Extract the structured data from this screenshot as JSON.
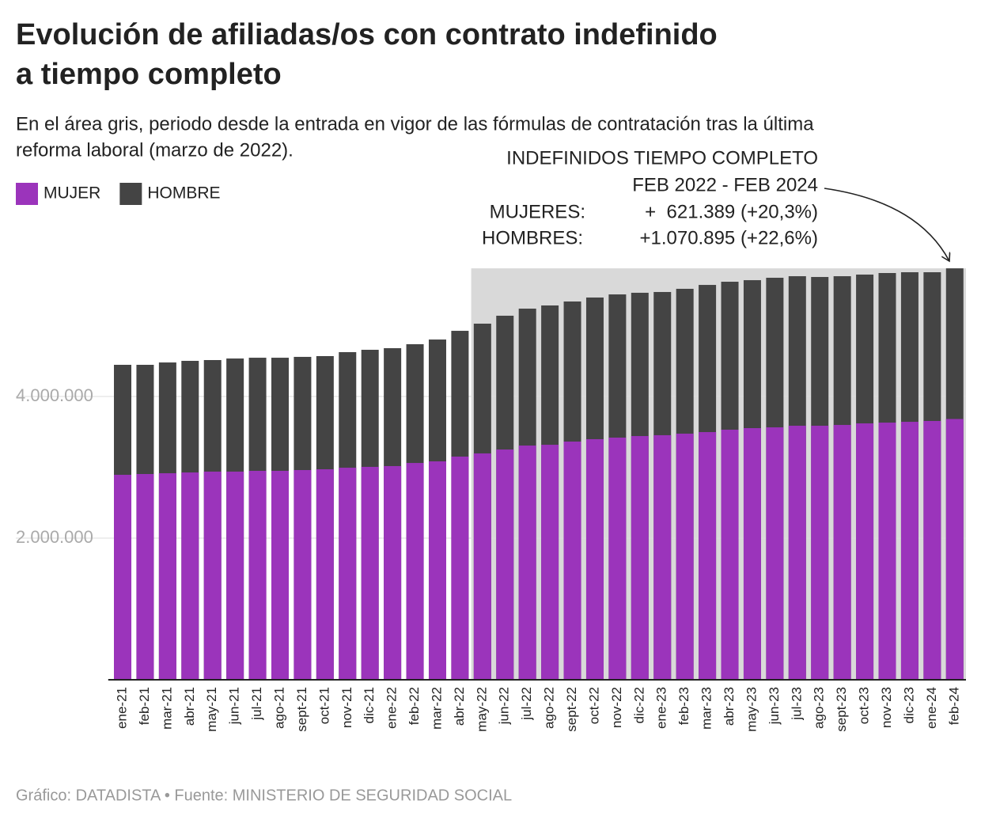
{
  "chart_data": {
    "type": "bar",
    "title": [
      "Evolución de afiliadas/os con contrato indefinido",
      "a tiempo completo"
    ],
    "subtitle": [
      "En el área gris, periodo desde la entrada en vigor de las fórmulas de contratación tras la última",
      "reforma laboral (marzo de 2022)."
    ],
    "source": "Gráfico: DATADISTA • Fuente: MINISTERIO DE SEGURIDAD SOCIAL",
    "annotation": {
      "title": "INDEFINIDOS TIEMPO COMPLETO",
      "period": "FEB 2022 - FEB 2024",
      "rows": [
        {
          "label": "MUJERES:",
          "text": "+  621.389 (+20,3%)"
        },
        {
          "label": "HOMBRES:",
          "text": "+1.070.895 (+22,6%)"
        }
      ]
    },
    "shaded_range": [
      "may-22",
      "feb-24"
    ],
    "categories": [
      "ene-21",
      "feb-21",
      "mar-21",
      "abr-21",
      "may-21",
      "jun-21",
      "jul-21",
      "ago-21",
      "sept-21",
      "oct-21",
      "nov-21",
      "dic-21",
      "ene-22",
      "feb-22",
      "mar-22",
      "abr-22",
      "may-22",
      "jun-22",
      "jul-22",
      "ago-22",
      "sept-22",
      "oct-22",
      "nov-22",
      "dic-22",
      "ene-23",
      "feb-23",
      "mar-23",
      "abr-23",
      "may-23",
      "jun-23",
      "jul-23",
      "ago-23",
      "sept-23",
      "oct-23",
      "nov-23",
      "dic-23",
      "ene-24",
      "feb-24"
    ],
    "series": [
      {
        "name": "HOMBRE",
        "color": "#444444",
        "values": [
          4447000,
          4447000,
          4480000,
          4503000,
          4514000,
          4536000,
          4547000,
          4547000,
          4559000,
          4570000,
          4626000,
          4659000,
          4682000,
          4738000,
          4804000,
          4927000,
          5028000,
          5140000,
          5240000,
          5285000,
          5341000,
          5397000,
          5441000,
          5464000,
          5475000,
          5520000,
          5575000,
          5620000,
          5642000,
          5676000,
          5698000,
          5687000,
          5698000,
          5721000,
          5743000,
          5754000,
          5754000,
          5809000
        ]
      },
      {
        "name": "MUJER",
        "color": "#9b34bb",
        "values": [
          2894000,
          2905000,
          2916000,
          2927000,
          2939000,
          2939000,
          2950000,
          2950000,
          2961000,
          2972000,
          2994000,
          3006000,
          3017000,
          3061000,
          3084000,
          3151000,
          3196000,
          3251000,
          3307000,
          3318000,
          3363000,
          3397000,
          3419000,
          3441000,
          3453000,
          3475000,
          3497000,
          3531000,
          3553000,
          3564000,
          3587000,
          3587000,
          3598000,
          3620000,
          3631000,
          3642000,
          3654000,
          3682000
        ]
      }
    ],
    "ylim": [
      0,
      6000000
    ],
    "yticks": [
      {
        "value": 2000000,
        "label": "2.000.000"
      },
      {
        "value": 4000000,
        "label": "4.000.000"
      }
    ],
    "grid": true
  }
}
